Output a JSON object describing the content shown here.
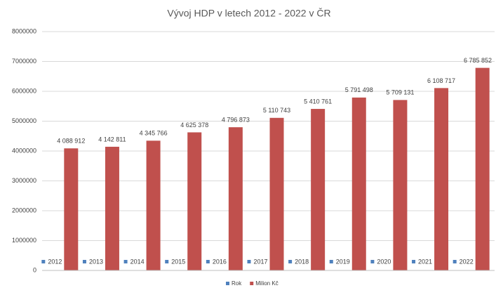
{
  "chart_data": {
    "type": "bar",
    "title": "Vývoj HDP v letech 2012 - 2022 v ČR",
    "categories": [
      null,
      null,
      null,
      null,
      null,
      null,
      null,
      null,
      null,
      null,
      null
    ],
    "series": [
      {
        "name": "Rok",
        "color": "#4f81bd",
        "values": [
          2012,
          2013,
          2014,
          2015,
          2016,
          2017,
          2018,
          2019,
          2020,
          2021,
          2022
        ]
      },
      {
        "name": "Milion Kč",
        "color": "#c0504d",
        "values": [
          4088912,
          4142811,
          4345766,
          4625378,
          4796873,
          5110743,
          5410761,
          5791498,
          5709131,
          6108717,
          6785852
        ],
        "value_labels": [
          "4 088 912",
          "4 142 811",
          "4 345 766",
          "4 625 378",
          "4 796 873",
          "5 110 743",
          "5 410 761",
          "5 791 498",
          "5 709 131",
          "6 108 717",
          "6 785 852"
        ]
      }
    ],
    "ylim": [
      0,
      8000000
    ],
    "yticks": [
      0,
      1000000,
      2000000,
      3000000,
      4000000,
      5000000,
      6000000,
      7000000,
      8000000
    ],
    "grid": true,
    "legend": "bottom"
  }
}
